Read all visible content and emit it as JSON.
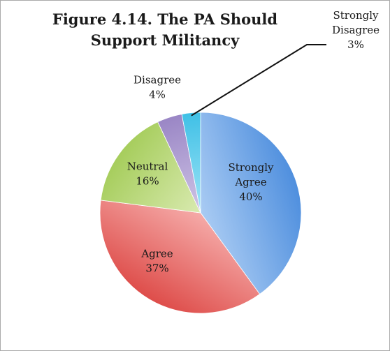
{
  "chart_data": {
    "type": "pie",
    "title_lines": [
      "Figure 4.14. The PA Should",
      "Support Militancy"
    ],
    "slices": [
      {
        "label_lines": [
          "Strongly",
          "Agree"
        ],
        "percent_label": "40%",
        "value": 40,
        "color": "#4f8fde",
        "light": "#a9cbf3"
      },
      {
        "label_lines": [
          "Agree"
        ],
        "percent_label": "37%",
        "value": 37,
        "color": "#de4d4a",
        "light": "#f5aaa8"
      },
      {
        "label_lines": [
          "Neutral"
        ],
        "percent_label": "16%",
        "value": 16,
        "color": "#a6cd5c",
        "light": "#d9eab0"
      },
      {
        "label_lines": [
          "Disagree"
        ],
        "percent_label": "4%",
        "value": 4,
        "color": "#9a86c5",
        "light": "#cfc4e6"
      },
      {
        "label_lines": [
          "Strongly",
          "Disagree"
        ],
        "percent_label": "3%",
        "value": 3,
        "color": "#3fc0e6",
        "light": "#9fe4f6"
      }
    ]
  }
}
